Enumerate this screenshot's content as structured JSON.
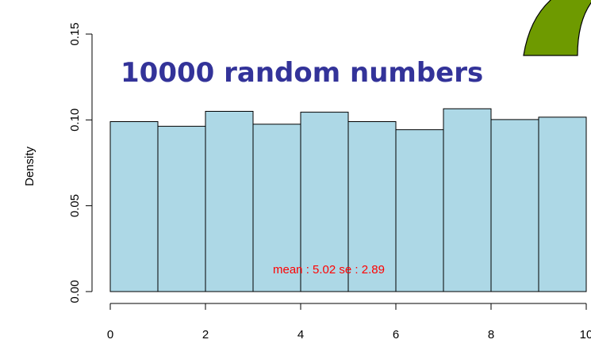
{
  "slide": {
    "title": "10000 random numbers",
    "title_color": "#333399",
    "decor_color": "#6e9a00"
  },
  "chart_data": {
    "type": "bar",
    "bins": [
      [
        0,
        1
      ],
      [
        1,
        2
      ],
      [
        2,
        3
      ],
      [
        3,
        4
      ],
      [
        4,
        5
      ],
      [
        5,
        6
      ],
      [
        6,
        7
      ],
      [
        7,
        8
      ],
      [
        8,
        9
      ],
      [
        9,
        10
      ]
    ],
    "values": [
      0.099,
      0.0963,
      0.105,
      0.0975,
      0.1045,
      0.099,
      0.0943,
      0.1065,
      0.1002,
      0.1016
    ],
    "xlim": [
      0,
      10
    ],
    "ylim": [
      0,
      0.15
    ],
    "x_ticks": [
      "0",
      "2",
      "4",
      "6",
      "8",
      "10"
    ],
    "y_ticks": [
      "0.00",
      "0.05",
      "0.10",
      "0.15"
    ],
    "ylabel": "Density",
    "bar_color": "#add8e6",
    "annotation": "mean : 5.02 se : 2.89",
    "annotation_color": "#ff0000",
    "grid": false
  }
}
